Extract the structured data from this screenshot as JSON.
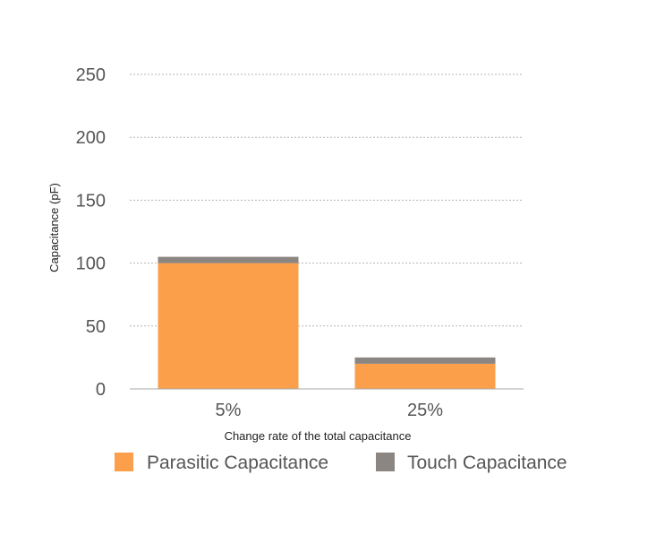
{
  "chart_data": {
    "type": "bar",
    "stacked": true,
    "categories": [
      "5%",
      "25%"
    ],
    "series": [
      {
        "name": "Parasitic Capacitance",
        "values": [
          100,
          20
        ],
        "color": "#fb9f4a"
      },
      {
        "name": "Touch Capacitance",
        "values": [
          5,
          5
        ],
        "color": "#8c8682"
      }
    ],
    "xlabel": "Change rate of the total capacitance",
    "ylabel": "Capacitance (pF)",
    "ylim": [
      0,
      250
    ],
    "yticks": [
      "0",
      "50",
      "100",
      "150",
      "200",
      "250"
    ],
    "grid": true,
    "legend_position": "bottom"
  }
}
